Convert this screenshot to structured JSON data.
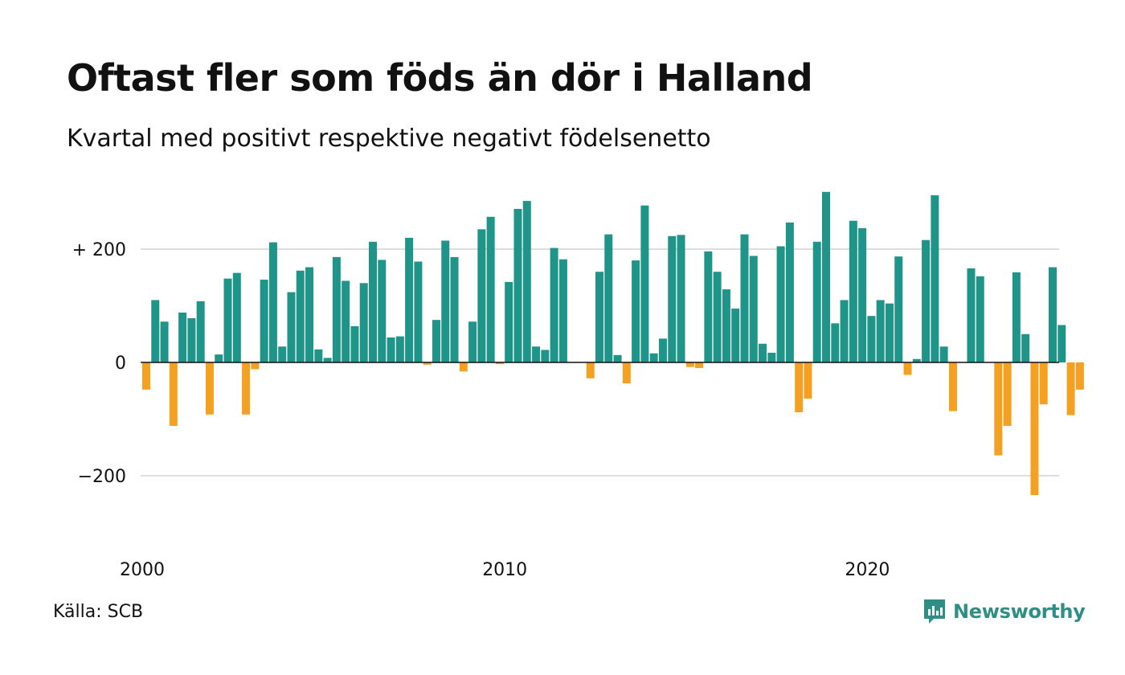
{
  "title": "Oftast fler som föds än dör i Halland",
  "subtitle": "Kvartal med positivt respektive negativt födelsenetto",
  "source": "Källa: SCB",
  "brand": {
    "name": "Newsworthy",
    "icon": "newsworthy-logo-icon"
  },
  "colors": {
    "positive": "#1f9488",
    "negative": "#f4a020",
    "grid": "#dddddd",
    "zero_line": "#111111"
  },
  "chart_data": {
    "type": "bar",
    "x_start": "2000 Q1",
    "x_tick_labels": [
      "2000",
      "2010",
      "2020"
    ],
    "y_tick_labels": [
      "+ 200",
      "0",
      "−200"
    ],
    "y_ticks": [
      200,
      0,
      -200
    ],
    "ylim": [
      -290,
      310
    ],
    "values": [
      -48,
      110,
      72,
      -112,
      88,
      78,
      108,
      -92,
      14,
      148,
      158,
      -92,
      -12,
      146,
      212,
      28,
      124,
      162,
      168,
      23,
      8,
      186,
      144,
      64,
      140,
      213,
      181,
      44,
      46,
      220,
      178,
      -4,
      75,
      215,
      186,
      -16,
      72,
      235,
      257,
      -3,
      142,
      271,
      285,
      28,
      22,
      202,
      182,
      0,
      0,
      -28,
      160,
      226,
      13,
      -37,
      180,
      277,
      16,
      42,
      223,
      225,
      -8,
      -10,
      196,
      160,
      129,
      95,
      226,
      188,
      33,
      17,
      205,
      247,
      -88,
      -64,
      213,
      301,
      69,
      110,
      250,
      237,
      82,
      110,
      104,
      187,
      -22,
      6,
      216,
      295,
      28,
      -86,
      0,
      166,
      152,
      0,
      -164,
      -112,
      159,
      50,
      -234,
      -74,
      168,
      66,
      -93,
      -48
    ]
  }
}
